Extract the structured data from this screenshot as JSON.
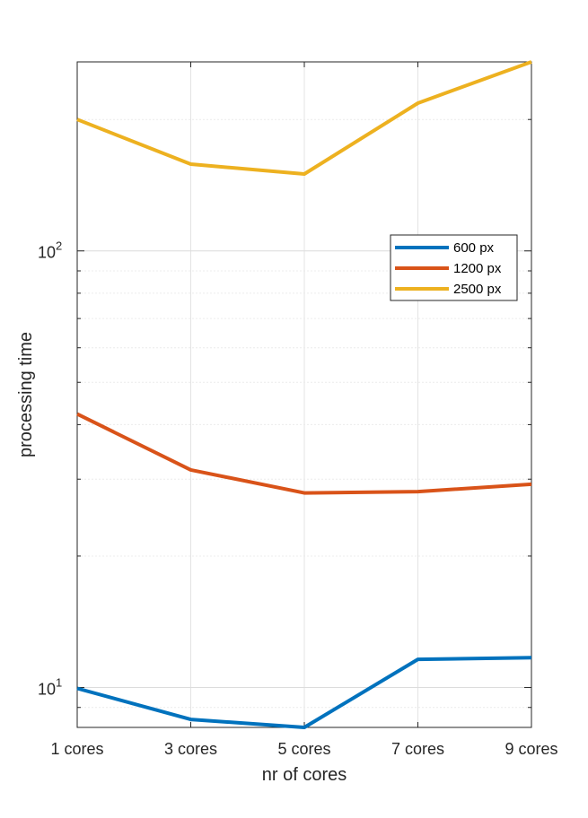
{
  "chart_data": {
    "type": "line",
    "categories": [
      "1 cores",
      "3 cores",
      "5 cores",
      "7 cores",
      "9 cores"
    ],
    "xlabel": "nr of cores",
    "ylabel": "processing time",
    "yscale": "log",
    "ylim": [
      8.1,
      271
    ],
    "yticks": [
      {
        "value": 10,
        "base": "10",
        "exp": "1"
      },
      {
        "value": 100,
        "base": "10",
        "exp": "2"
      }
    ],
    "grid": true,
    "legend_position": "right",
    "series": [
      {
        "name": "600 px",
        "color": "#0072BD",
        "values": [
          9.95,
          8.45,
          8.1,
          11.6,
          11.7
        ]
      },
      {
        "name": "1200 px",
        "color": "#D95319",
        "values": [
          42.3,
          31.5,
          27.9,
          28.1,
          29.2
        ]
      },
      {
        "name": "2500 px",
        "color": "#EDB120",
        "values": [
          200,
          158,
          150,
          218,
          271
        ]
      }
    ]
  }
}
